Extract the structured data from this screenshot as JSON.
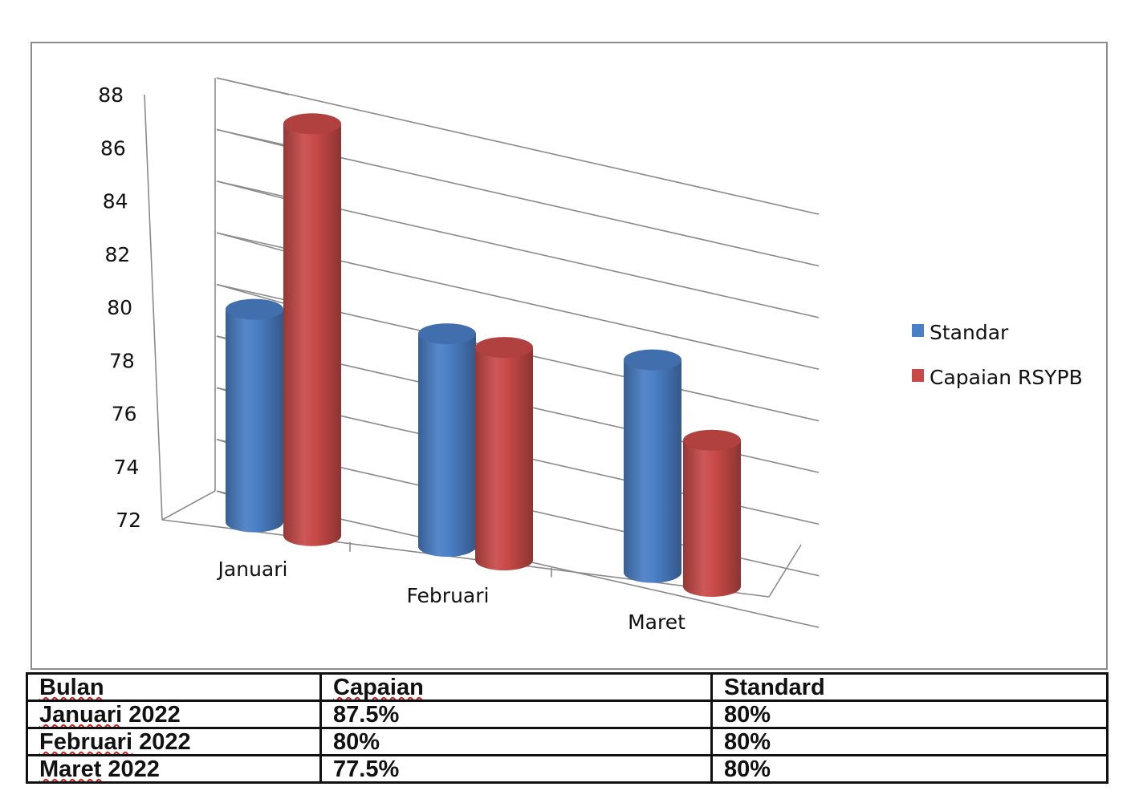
{
  "chart_data": {
    "type": "bar",
    "style": "3d-cylinder",
    "categories": [
      "Januari",
      "Februari",
      "Maret"
    ],
    "series": [
      {
        "name": "Standar",
        "color": "#4a7ec5",
        "values": [
          80,
          80,
          80
        ]
      },
      {
        "name": "Capaian RSYPB",
        "color": "#c84a48",
        "values": [
          87.5,
          80,
          77.5
        ]
      }
    ],
    "y_ticks": [
      "72",
      "74",
      "76",
      "78",
      "80",
      "82",
      "84",
      "86",
      "88"
    ],
    "ylim": [
      72,
      88
    ],
    "grid": true,
    "legend_position": "right"
  },
  "table": {
    "rows": [
      [
        "Bulan",
        "Capaian",
        "Standard"
      ],
      [
        "Januari 2022",
        "87.5%",
        "80%"
      ],
      [
        "Februari 2022",
        "80%",
        "80%"
      ],
      [
        "Maret 2022",
        "77.5%",
        "80%"
      ]
    ],
    "misspelled_words": [
      "Bulan",
      "Capaian",
      "Januari",
      "Februari",
      "Maret"
    ]
  }
}
